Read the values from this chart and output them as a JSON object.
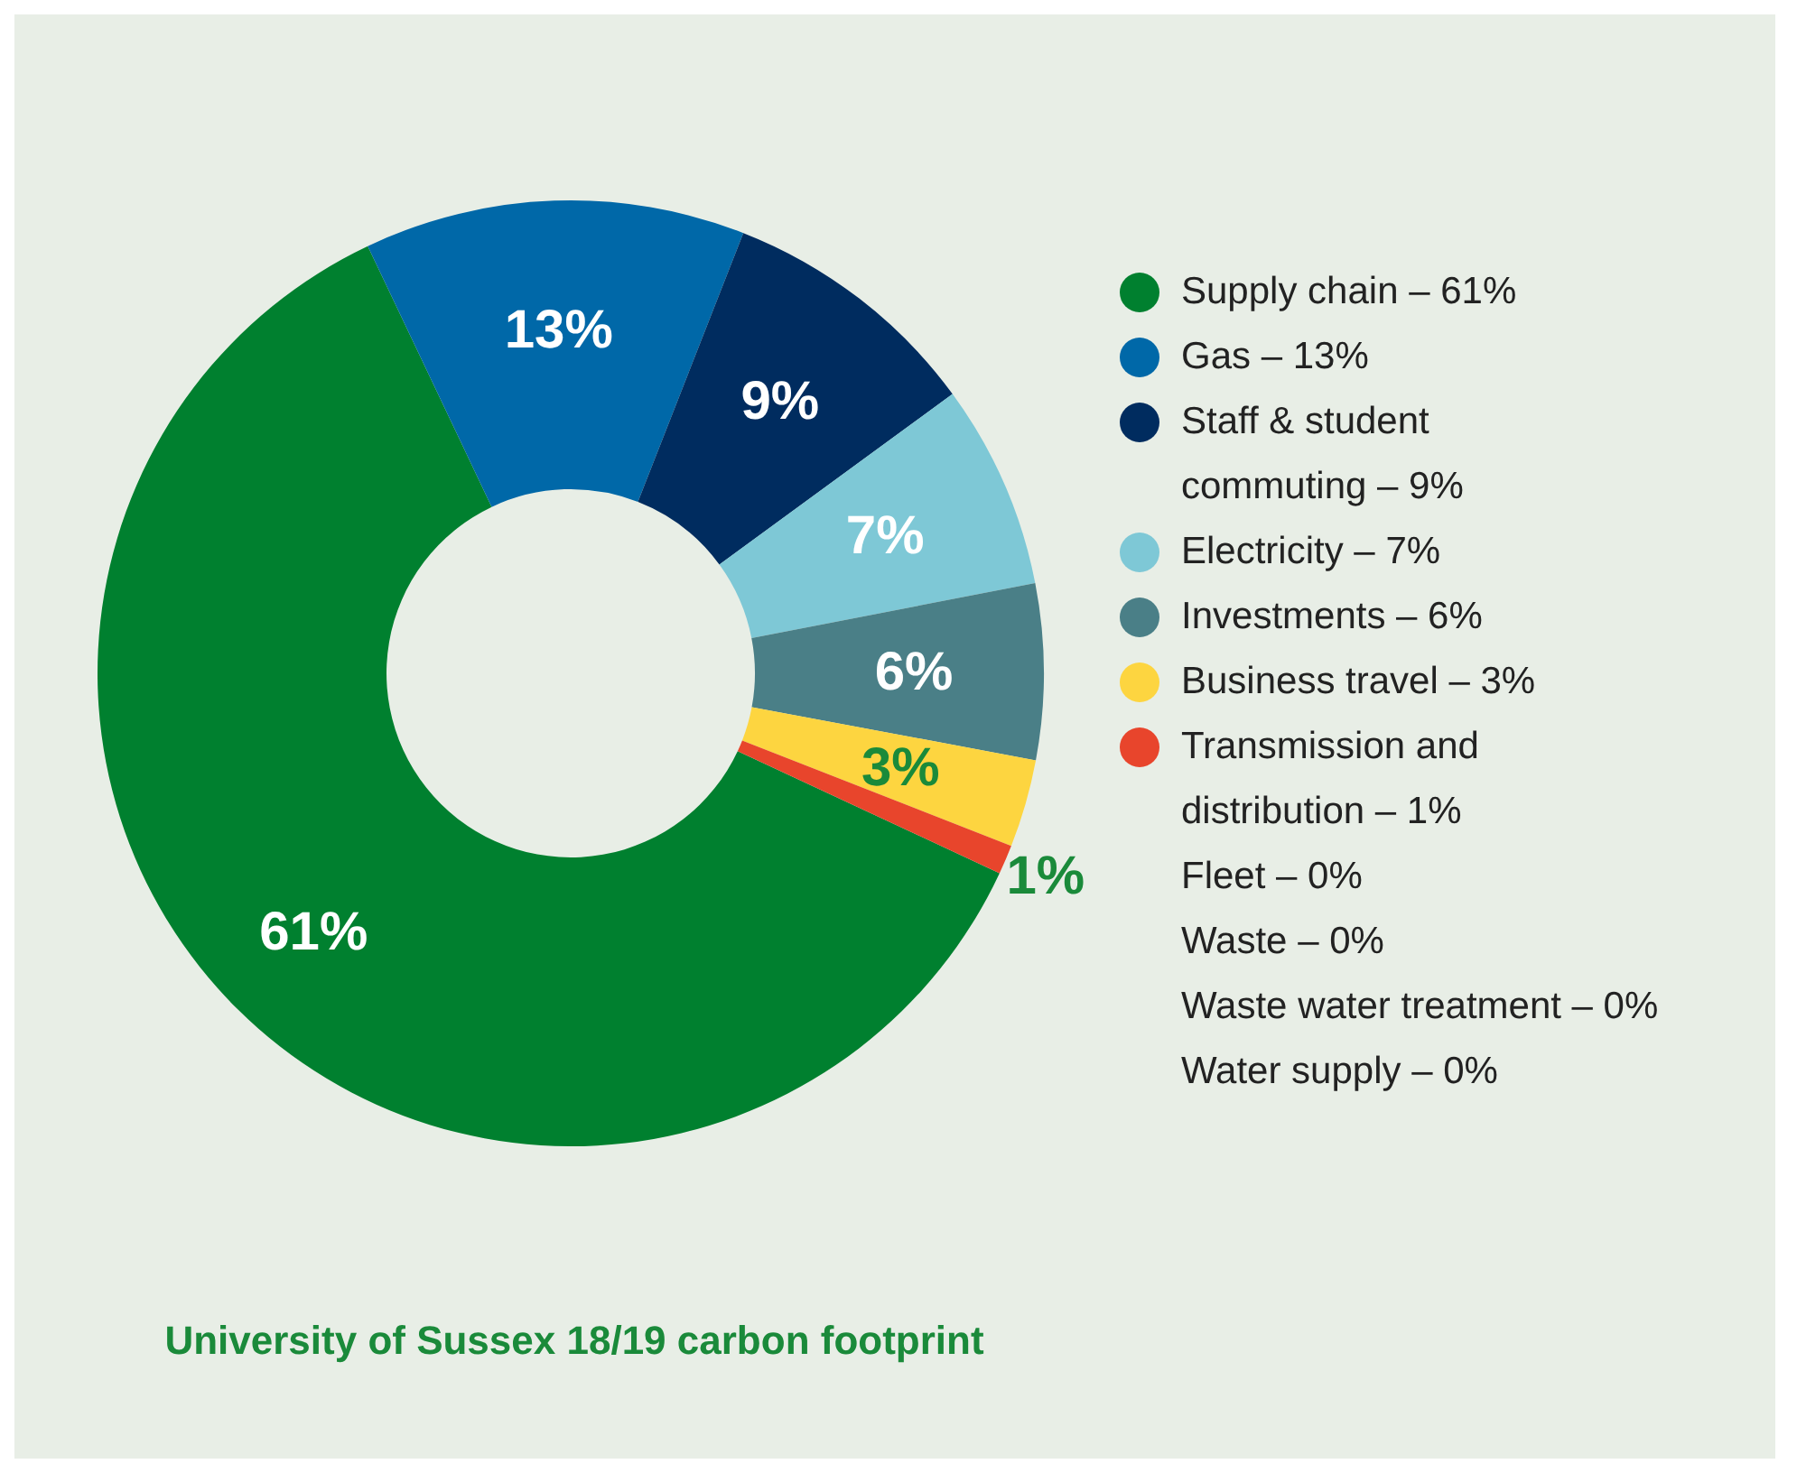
{
  "chart_data": {
    "type": "donut",
    "title": "University of Sussex 18/19 carbon footprint",
    "categories": [
      "Supply chain – 61%",
      "Gas – 13%",
      "Staff & student commuting – 9%",
      "Electricity – 7%",
      "Investments – 6%",
      "Business travel – 3%",
      "Transmission and distribution – 1%",
      "Fleet – 0%",
      "Waste – 0%",
      "Waste water treatment – 0%",
      "Water supply – 0%"
    ],
    "values": [
      61,
      13,
      9,
      7,
      6,
      3,
      1,
      0,
      0,
      0,
      0
    ],
    "value_labels": [
      "61%",
      "13%",
      "9%",
      "7%",
      "6%",
      "3%",
      "1%",
      null,
      null,
      null,
      null
    ],
    "colors": [
      "#00802f",
      "#0068a8",
      "#002c5f",
      "#7ec8d6",
      "#4a7f87",
      "#fdd540",
      "#e8452c",
      null,
      null,
      null,
      null
    ],
    "legend": "right"
  }
}
